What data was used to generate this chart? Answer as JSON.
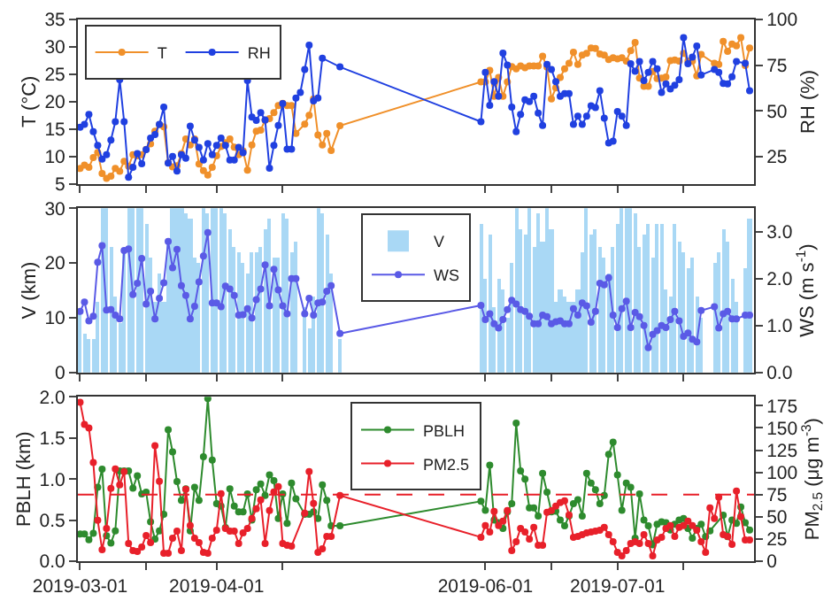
{
  "chart_data": [
    {
      "type": "line",
      "ylabel": "T (°C)",
      "y2label": "RH (%)",
      "ylim": [
        5,
        35
      ],
      "yticks": [
        5,
        10,
        15,
        20,
        25,
        30,
        35
      ],
      "y2lim": [
        10,
        100
      ],
      "y2ticks": [
        25,
        50,
        75,
        100
      ],
      "xlim": [
        "2019-02-28T12:00",
        "2019-08-01"
      ],
      "xticks": [
        "2019-03-01",
        {
          "value": "2019-03-16",
          "label": null
        },
        "2019-04-01",
        {
          "value": "2019-04-16",
          "label": null
        },
        "2019-06-01",
        {
          "value": "2019-06-16",
          "label": null
        },
        "2019-07-01",
        {
          "value": "2019-07-16",
          "label": null
        }
      ],
      "tick_labels": "y",
      "legend": "top left",
      "marker": "circle",
      "line_style": "solid",
      "x": [
        "2019-03-01",
        "2019-03-02",
        "2019-03-03",
        "2019-03-04",
        "2019-03-05",
        "2019-03-06",
        "2019-03-07",
        "2019-03-08",
        "2019-03-09",
        "2019-03-10",
        "2019-03-11",
        "2019-03-12",
        "2019-03-13",
        "2019-03-14",
        "2019-03-15",
        "2019-03-16",
        "2019-03-17",
        "2019-03-18",
        "2019-03-19",
        "2019-03-20",
        "2019-03-21",
        "2019-03-22",
        "2019-03-23",
        "2019-03-24",
        "2019-03-25",
        "2019-03-26",
        "2019-03-27",
        "2019-03-28",
        "2019-03-29",
        "2019-03-30",
        "2019-03-31",
        "2019-04-01",
        "2019-04-02",
        "2019-04-03",
        "2019-04-04",
        "2019-04-05",
        "2019-04-06",
        "2019-04-07",
        "2019-04-08",
        "2019-04-09",
        "2019-04-10",
        "2019-04-11",
        "2019-04-12",
        "2019-04-13",
        "2019-04-14",
        "2019-04-15",
        "2019-04-16",
        "2019-04-17",
        "2019-04-18",
        "2019-04-19",
        "2019-04-20",
        "2019-04-21",
        "2019-04-22",
        "2019-04-23",
        "2019-04-24",
        "2019-04-25",
        "2019-04-26",
        "2019-04-27",
        "2019-04-28",
        "2019-04-29",
        "2019-05-31",
        "2019-06-01",
        "2019-06-02",
        "2019-06-03",
        "2019-06-04",
        "2019-06-05",
        "2019-06-06",
        "2019-06-07",
        "2019-06-08",
        "2019-06-09",
        "2019-06-10",
        "2019-06-11",
        "2019-06-12",
        "2019-06-13",
        "2019-06-14",
        "2019-06-15",
        "2019-06-16",
        "2019-06-17",
        "2019-06-18",
        "2019-06-19",
        "2019-06-20",
        "2019-06-21",
        "2019-06-22",
        "2019-06-23",
        "2019-06-24",
        "2019-06-25",
        "2019-06-26",
        "2019-06-27",
        "2019-06-28",
        "2019-06-29",
        "2019-06-30",
        "2019-07-01",
        "2019-07-02",
        "2019-07-03",
        "2019-07-04",
        "2019-07-05",
        "2019-07-06",
        "2019-07-07",
        "2019-07-08",
        "2019-07-09",
        "2019-07-10",
        "2019-07-11",
        "2019-07-12",
        "2019-07-13",
        "2019-07-14",
        "2019-07-15",
        "2019-07-16",
        "2019-07-17",
        "2019-07-18",
        "2019-07-19",
        "2019-07-20",
        "2019-07-21",
        "2019-07-22",
        "2019-07-23",
        "2019-07-24",
        "2019-07-25",
        "2019-07-26",
        "2019-07-27",
        "2019-07-28",
        "2019-07-29",
        "2019-07-30",
        "2019-07-31"
      ],
      "series": [
        {
          "name": "T",
          "color": "#f0902a",
          "values": [
            7.8,
            8.4,
            8,
            9.8,
            10.7,
            6.9,
            6,
            6.4,
            7.8,
            7.3,
            9.1,
            8.2,
            10.3,
            10.1,
            10.3,
            11.3,
            12.3,
            14.6,
            15.8,
            15.4,
            8.8,
            8.1,
            8.3,
            10.5,
            13.2,
            12.1,
            13.2,
            8.6,
            7.4,
            6.6,
            8,
            10.1,
            11.8,
            12.5,
            13.2,
            11.7,
            10.3,
            11,
            7.5,
            12.1,
            14.6,
            14.8,
            16.6,
            16.9,
            18,
            19.3,
            19.7,
            19.3,
            19.3,
            14.2,
            null,
            15.9,
            17.5,
            20.5,
            13.9,
            12.1,
            14.2,
            11.1,
            null,
            15.6,
            23.6,
            23.6,
            25.7,
            21.0,
            24.4,
            21.0,
            23.6,
            26.4,
            26.0,
            26.5,
            26.2,
            26.5,
            26.5,
            26.5,
            28.3,
            26.3,
            20.5,
            22.5,
            24.4,
            26.0,
            27.0,
            29.0,
            26.8,
            28.5,
            28.8,
            29.8,
            29.7,
            28.7,
            28.5,
            27.7,
            28.0,
            27.8,
            28.0,
            27.4,
            29.3,
            30.8,
            24.3,
            22.8,
            22.8,
            25.5,
            24.2,
            24.3,
            24.5,
            27.5,
            27.6,
            27.4,
            28.8,
            27.4,
            27.4,
            24.7,
            28.6,
            null,
            null,
            27.0,
            26.8,
            31.0,
            29.2,
            30.5,
            30.2,
            31.7,
            26.6,
            29.8
          ]
        },
        {
          "name": "RH",
          "color": "#2040e0",
          "axis": "y2",
          "values": [
            41,
            42.5,
            48,
            38.5,
            31,
            23.5,
            26,
            34,
            44,
            67,
            44,
            13.6,
            19,
            26.5,
            21,
            28.7,
            35,
            37,
            42.5,
            52,
            21.3,
            25,
            17,
            26,
            24,
            41.6,
            34,
            30,
            23,
            32,
            26,
            31,
            35,
            31,
            23,
            23,
            30,
            27,
            66.5,
            46.5,
            44.7,
            49,
            45,
            18.5,
            31,
            42,
            54,
            29,
            29,
            57,
            60,
            72.6,
            86,
            55.4,
            57,
            78.8,
            null,
            null,
            null,
            74,
            44,
            71,
            53,
            66,
            58,
            81.6,
            75,
            52,
            38.5,
            48,
            56,
            55,
            58,
            48.7,
            42,
            75.4,
            72.6,
            66,
            58,
            59.4,
            59.4,
            42.5,
            47,
            42.5,
            47,
            52.7,
            51.7,
            61,
            46,
            32.4,
            33.3,
            49.6,
            47,
            42,
            75.7,
            71.7,
            77,
            66.5,
            71,
            77,
            73,
            60,
            64.7,
            62,
            64,
            67,
            90,
            75.7,
            79.4,
            85.5,
            69.6,
            null,
            null,
            72.6,
            71,
            65,
            64.7,
            68.6,
            77,
            null,
            76,
            61
          ]
        }
      ]
    },
    {
      "type": "bar",
      "ylabel": "V (km)",
      "y2label": "WS (m s$^{-1}$)",
      "ylim": [
        0,
        30
      ],
      "yticks": [
        0,
        10,
        20,
        30
      ],
      "y2lim": [
        0,
        3.5
      ],
      "y2ticks": [
        {
          "value": 0,
          "label": "0.0"
        },
        {
          "value": 1,
          "label": "1.0"
        },
        {
          "value": 2,
          "label": "2.0"
        },
        {
          "value": 3,
          "label": "3.0"
        }
      ],
      "xlim": [
        "2019-02-28T12:00",
        "2019-08-01"
      ],
      "xticks": [
        "2019-03-01",
        {
          "value": "2019-03-16",
          "label": null
        },
        "2019-04-01",
        {
          "value": "2019-04-16",
          "label": null
        },
        "2019-06-01",
        {
          "value": "2019-06-16",
          "label": null
        },
        "2019-07-01",
        {
          "value": "2019-07-16",
          "label": null
        }
      ],
      "tick_labels": "y",
      "legend": "top",
      "marker": "circle",
      "line_style": "solid",
      "x": [
        "2019-03-01",
        "2019-03-02",
        "2019-03-03",
        "2019-03-04",
        "2019-03-05",
        "2019-03-06",
        "2019-03-07",
        "2019-03-08",
        "2019-03-09",
        "2019-03-10",
        "2019-03-11",
        "2019-03-12",
        "2019-03-13",
        "2019-03-14",
        "2019-03-15",
        "2019-03-16",
        "2019-03-17",
        "2019-03-18",
        "2019-03-19",
        "2019-03-20",
        "2019-03-21",
        "2019-03-22",
        "2019-03-23",
        "2019-03-24",
        "2019-03-25",
        "2019-03-26",
        "2019-03-27",
        "2019-03-28",
        "2019-03-29",
        "2019-03-30",
        "2019-03-31",
        "2019-04-01",
        "2019-04-02",
        "2019-04-03",
        "2019-04-04",
        "2019-04-05",
        "2019-04-06",
        "2019-04-07",
        "2019-04-08",
        "2019-04-09",
        "2019-04-10",
        "2019-04-11",
        "2019-04-12",
        "2019-04-13",
        "2019-04-14",
        "2019-04-15",
        "2019-04-16",
        "2019-04-17",
        "2019-04-18",
        "2019-04-19",
        "2019-04-20",
        "2019-04-21",
        "2019-04-22",
        "2019-04-23",
        "2019-04-24",
        "2019-04-25",
        "2019-04-26",
        "2019-04-27",
        "2019-04-28",
        "2019-04-29",
        "2019-05-31",
        "2019-06-01",
        "2019-06-02",
        "2019-06-03",
        "2019-06-04",
        "2019-06-05",
        "2019-06-06",
        "2019-06-07",
        "2019-06-08",
        "2019-06-09",
        "2019-06-10",
        "2019-06-11",
        "2019-06-12",
        "2019-06-13",
        "2019-06-14",
        "2019-06-15",
        "2019-06-16",
        "2019-06-17",
        "2019-06-18",
        "2019-06-19",
        "2019-06-20",
        "2019-06-21",
        "2019-06-22",
        "2019-06-23",
        "2019-06-24",
        "2019-06-25",
        "2019-06-26",
        "2019-06-27",
        "2019-06-28",
        "2019-06-29",
        "2019-06-30",
        "2019-07-01",
        "2019-07-02",
        "2019-07-03",
        "2019-07-04",
        "2019-07-05",
        "2019-07-06",
        "2019-07-07",
        "2019-07-08",
        "2019-07-09",
        "2019-07-10",
        "2019-07-11",
        "2019-07-12",
        "2019-07-13",
        "2019-07-14",
        "2019-07-15",
        "2019-07-16",
        "2019-07-17",
        "2019-07-18",
        "2019-07-19",
        "2019-07-20",
        "2019-07-21",
        "2019-07-22",
        "2019-07-23",
        "2019-07-24",
        "2019-07-25",
        "2019-07-26",
        "2019-07-27",
        "2019-07-28",
        "2019-07-29",
        "2019-07-30",
        "2019-07-31"
      ],
      "series": [
        {
          "name": "V",
          "color": "#a9d8f5",
          "values": [
            11,
            7,
            6,
            6,
            13,
            30,
            30,
            23,
            14,
            9,
            22,
            30,
            30,
            30,
            30,
            27,
            21,
            13,
            18,
            13,
            24,
            30,
            30,
            30,
            29,
            28,
            21,
            20,
            30,
            29,
            30,
            30,
            30,
            29,
            26,
            23,
            22,
            20,
            18,
            22,
            22,
            23,
            26,
            28,
            21,
            21,
            29,
            28,
            22,
            24,
            null,
            12,
            8,
            14,
            30,
            29,
            25,
            18,
            null,
            6,
            27,
            17,
            25,
            12,
            17,
            15,
            10,
            20,
            30,
            26,
            25,
            30,
            23,
            29,
            24,
            30,
            26,
            13,
            15,
            14,
            13,
            13,
            15,
            22,
            30,
            25,
            26,
            23,
            21,
            18,
            23,
            27,
            30,
            30,
            30,
            29,
            23,
            25,
            27,
            21,
            27,
            27,
            15,
            14,
            27,
            24,
            22,
            19,
            21,
            14,
            10,
            null,
            null,
            20,
            22,
            26,
            24,
            17,
            13,
            null,
            19,
            28
          ]
        },
        {
          "name": "WS",
          "type": "line",
          "color": "#5a5ae6",
          "axis": "y2",
          "values": [
            1.3,
            1.5,
            1.1,
            1.2,
            2.35,
            2.7,
            1.33,
            1.34,
            1.22,
            1.14,
            2.6,
            2.63,
            1.66,
            1.9,
            2.43,
            1.46,
            1.73,
            1.14,
            1.58,
            1.91,
            2.79,
            2.23,
            2.62,
            1.85,
            1.64,
            1.14,
            1.41,
            1.93,
            2.48,
            2.98,
            1.48,
            1.48,
            1.4,
            1.84,
            1.78,
            1.64,
            1.22,
            1.23,
            1.36,
            1.16,
            1.55,
            1.78,
            2.29,
            1.42,
            2.2,
            1.76,
            1.42,
            1.25,
            2.0,
            2.0,
            null,
            1.25,
            1.58,
            1.22,
            1.48,
            1.5,
            1.73,
            1.85,
            null,
            0.83,
            1.43,
            1.13,
            1.25,
            1.04,
            0.95,
            1.13,
            1.34,
            1.54,
            1.46,
            1.34,
            1.3,
            1.2,
            1.04,
            1.04,
            1.22,
            1.19,
            1.04,
            1.08,
            1.1,
            1.04,
            1.04,
            1.36,
            1.22,
            1.48,
            1.42,
            1.07,
            1.3,
            1.9,
            1.87,
            2.02,
            1.22,
            0.96,
            1.36,
            1.52,
            0.96,
            1.28,
            1.19,
            1.0,
            0.53,
            0.81,
            0.89,
            1.0,
            0.96,
            1.13,
            1.3,
            1.1,
            0.77,
            0.84,
            0.71,
            0.65,
            1.32,
            null,
            null,
            1.4,
            0.95,
            1.25,
            1.3,
            1.14,
            1.14,
            null,
            1.22,
            1.22
          ]
        }
      ]
    },
    {
      "type": "line",
      "ylabel": "PBLH (km)",
      "y2label": "PM$_{2.5}$ (μg m$^{-3}$)",
      "ylim": [
        0,
        2
      ],
      "yticks": [
        {
          "value": 0,
          "label": "0.0"
        },
        0.5,
        {
          "value": 1,
          "label": "1.0"
        },
        1.5,
        {
          "value": 2,
          "label": "2.0"
        }
      ],
      "y2lim": [
        0,
        185
      ],
      "y2ticks": [
        0,
        25,
        50,
        75,
        100,
        125,
        150,
        175
      ],
      "xlim": [
        "2019-02-28T12:00",
        "2019-08-01"
      ],
      "xticks": [
        "2019-03-01",
        {
          "value": "2019-03-16",
          "label": null
        },
        "2019-04-01",
        {
          "value": "2019-04-16",
          "label": null
        },
        "2019-06-01",
        {
          "value": "2019-06-16",
          "label": null
        },
        "2019-07-01",
        {
          "value": "2019-07-16",
          "label": null
        }
      ],
      "legend": "top",
      "marker": "circle",
      "line_style": "solid",
      "ref_lines": [
        {
          "axis": "y2",
          "value": 75,
          "color": "#e8202a",
          "line_style": "dashed"
        }
      ],
      "x": [
        "2019-03-01",
        "2019-03-02",
        "2019-03-03",
        "2019-03-04",
        "2019-03-05",
        "2019-03-06",
        "2019-03-07",
        "2019-03-08",
        "2019-03-09",
        "2019-03-10",
        "2019-03-11",
        "2019-03-12",
        "2019-03-13",
        "2019-03-14",
        "2019-03-15",
        "2019-03-16",
        "2019-03-17",
        "2019-03-18",
        "2019-03-19",
        "2019-03-20",
        "2019-03-21",
        "2019-03-22",
        "2019-03-23",
        "2019-03-24",
        "2019-03-25",
        "2019-03-26",
        "2019-03-27",
        "2019-03-28",
        "2019-03-29",
        "2019-03-30",
        "2019-03-31",
        "2019-04-01",
        "2019-04-02",
        "2019-04-03",
        "2019-04-04",
        "2019-04-05",
        "2019-04-06",
        "2019-04-07",
        "2019-04-08",
        "2019-04-09",
        "2019-04-10",
        "2019-04-11",
        "2019-04-12",
        "2019-04-13",
        "2019-04-14",
        "2019-04-15",
        "2019-04-16",
        "2019-04-17",
        "2019-04-18",
        "2019-04-19",
        "2019-04-20",
        "2019-04-21",
        "2019-04-22",
        "2019-04-23",
        "2019-04-24",
        "2019-04-25",
        "2019-04-26",
        "2019-04-27",
        "2019-04-28",
        "2019-04-29",
        "2019-05-31",
        "2019-06-01",
        "2019-06-02",
        "2019-06-03",
        "2019-06-04",
        "2019-06-05",
        "2019-06-06",
        "2019-06-07",
        "2019-06-08",
        "2019-06-09",
        "2019-06-10",
        "2019-06-11",
        "2019-06-12",
        "2019-06-13",
        "2019-06-14",
        "2019-06-15",
        "2019-06-16",
        "2019-06-17",
        "2019-06-18",
        "2019-06-19",
        "2019-06-20",
        "2019-06-21",
        "2019-06-22",
        "2019-06-23",
        "2019-06-24",
        "2019-06-25",
        "2019-06-26",
        "2019-06-27",
        "2019-06-28",
        "2019-06-29",
        "2019-06-30",
        "2019-07-01",
        "2019-07-02",
        "2019-07-03",
        "2019-07-04",
        "2019-07-05",
        "2019-07-06",
        "2019-07-07",
        "2019-07-08",
        "2019-07-09",
        "2019-07-10",
        "2019-07-11",
        "2019-07-12",
        "2019-07-13",
        "2019-07-14",
        "2019-07-15",
        "2019-07-16",
        "2019-07-17",
        "2019-07-18",
        "2019-07-19",
        "2019-07-20",
        "2019-07-21",
        "2019-07-22",
        "2019-07-23",
        "2019-07-24",
        "2019-07-25",
        "2019-07-26",
        "2019-07-27",
        "2019-07-28",
        "2019-07-29",
        "2019-07-30",
        "2019-07-31"
      ],
      "series": [
        {
          "name": "PBLH",
          "color": "#2e8b2e",
          "values": [
            0.33,
            0.33,
            0.26,
            0.34,
            0.9,
            1.12,
            0.31,
            0.22,
            0.37,
            1.1,
            1.1,
            1.1,
            0.89,
            1.04,
            0.82,
            0.84,
            0.48,
            0.27,
            0.37,
            0.57,
            1.6,
            1.33,
            0.97,
            0.74,
            0.88,
            0.37,
            0.9,
            0.74,
            1.27,
            1.98,
            1.23,
            0.7,
            0.67,
            0.41,
            0.88,
            0.67,
            0.6,
            0.6,
            0.82,
            0.5,
            0.87,
            0.94,
            0.8,
            1.05,
            0.98,
            0.52,
            0.82,
            0.46,
            0.95,
            0.76,
            null,
            0.57,
            0.57,
            0.6,
            0.52,
            0.93,
            0.74,
            0.43,
            null,
            0.43,
            0.73,
            0.62,
            1.17,
            0.5,
            0.47,
            0.4,
            0.6,
            0.7,
            1.68,
            1.1,
            1.0,
            0.65,
            0.65,
            0.55,
            1.07,
            0.84,
            0.6,
            0.61,
            0.5,
            0.43,
            0.55,
            0.7,
            0.75,
            0.55,
            1.07,
            0.95,
            0.87,
            0.7,
            0.8,
            1.3,
            1.45,
            1.05,
            0.62,
            0.95,
            0.9,
            0.28,
            0.82,
            0.5,
            0.43,
            0.2,
            0.45,
            0.48,
            0.47,
            0.38,
            0.45,
            0.5,
            0.52,
            0.4,
            0.28,
            0.4,
            0.45,
            0.3,
            0.37,
            null,
            null,
            0.56,
            0.3,
            0.5,
            0.46,
            0.66,
            0.47,
            0.38
          ]
        },
        {
          "name": "PM2.5",
          "color": "#e8202a",
          "axis": "y2",
          "values": [
            179,
            154,
            150,
            111,
            46,
            13,
            37,
            82,
            104,
            86,
            101,
            20,
            12,
            11,
            16,
            29,
            21,
            130,
            90,
            9,
            9,
            26,
            34,
            12,
            81,
            40,
            26,
            21,
            10,
            9,
            26,
            35,
            76,
            37,
            34,
            34,
            20,
            32,
            37,
            48,
            59,
            69,
            20,
            57,
            78,
            84,
            20,
            18,
            17,
            null,
            null,
            54,
            101,
            65,
            10,
            14,
            28,
            28,
            null,
            74,
            27,
            40,
            33,
            56,
            40,
            45,
            57,
            12,
            22,
            37,
            33,
            25,
            38,
            18,
            18,
            55,
            57,
            62,
            66,
            68,
            52,
            27,
            28,
            30,
            32,
            33,
            34,
            35,
            38,
            30,
            22,
            10,
            6,
            12,
            20,
            22,
            20,
            30,
            20,
            6,
            24,
            27,
            37,
            40,
            28,
            38,
            40,
            45,
            40,
            35,
            22,
            10,
            60,
            48,
            72,
            30,
            28,
            19,
            79,
            50,
            24,
            24
          ]
        }
      ]
    }
  ]
}
